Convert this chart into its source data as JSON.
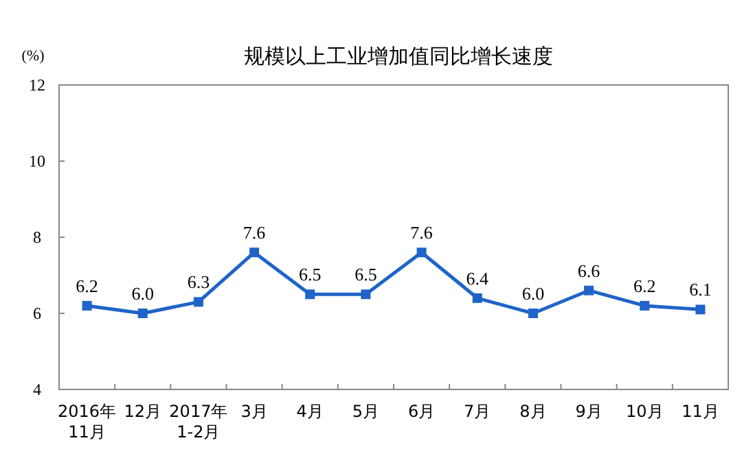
{
  "chart_data": {
    "type": "line",
    "title": "规模以上工业增加值同比增长速度",
    "ylabel": "(%)",
    "categories": [
      "2016年\n11月",
      "12月",
      "2017年\n1-2月",
      "3月",
      "4月",
      "5月",
      "6月",
      "7月",
      "8月",
      "9月",
      "10月",
      "11月"
    ],
    "series": [
      {
        "color": "#1f64c8",
        "values": [
          6.2,
          6.0,
          6.3,
          7.6,
          6.5,
          6.5,
          7.6,
          6.4,
          6.0,
          6.6,
          6.2,
          6.1
        ],
        "value_labels": [
          "6.2",
          "6.0",
          "6.3",
          "7.6",
          "6.5",
          "6.5",
          "7.6",
          "6.4",
          "6.0",
          "6.6",
          "6.2",
          "6.1"
        ]
      }
    ],
    "ylim": [
      4,
      12
    ],
    "yticks": [
      4,
      6,
      8,
      10,
      12
    ],
    "marker": "square",
    "line_style": "solid",
    "grid": false
  }
}
